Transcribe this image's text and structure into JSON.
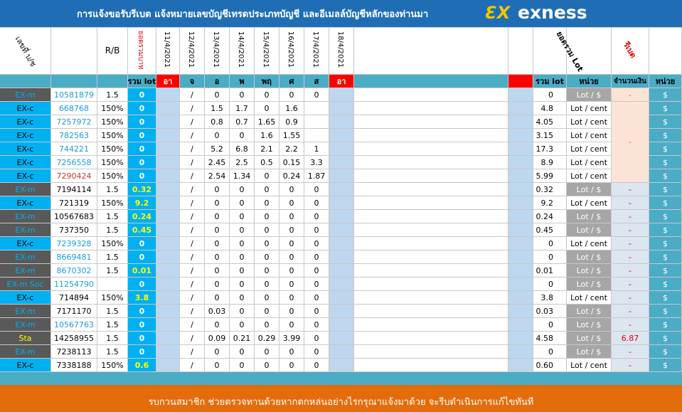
{
  "header": {
    "title": "การแจ้งขอรับรีเบต  แจ้งหมายเลขบัญชีเทรดประเภทบัญชี และอีเมลล์บัญชีหลักของท่านมา",
    "logo": "exness"
  },
  "columns": {
    "account": "เลขที่ บ/ช",
    "rb": "R/B",
    "total": "ยอดรวมบาท",
    "dates": [
      "11/4/2021",
      "12/4/2021",
      "13/4/2021",
      "14/4/2021",
      "15/4/2021",
      "16/4/2021",
      "17/4/2021",
      "18/4/2021"
    ],
    "sum": "ยอดรวม Lot",
    "rebate": "รีเบต"
  },
  "subheader": {
    "total": "รวม lot",
    "days": [
      "อา",
      "จ",
      "อ",
      "พ",
      "พฤ",
      "ศ",
      "ส",
      "อา"
    ],
    "sum": "รวม lot",
    "unit": "หน่วย",
    "amount": "จำนวนเงิน",
    "currency": "หน่วย"
  },
  "table": {
    "rows": [
      [
        "EX-m",
        "10581879",
        "1.5",
        "0",
        "/",
        "0",
        "0",
        "0",
        "0",
        "0",
        "0",
        "Lot / $",
        "-",
        "$"
      ],
      [
        "EX-c",
        "668768",
        "150%",
        "0",
        "/",
        "1.5",
        "1.7",
        "0",
        "1.6",
        null,
        "4.8",
        "Lot / cent",
        null,
        "$"
      ],
      [
        "EX-c",
        "7257972",
        "150%",
        "0",
        "/",
        "0.8",
        "0.7",
        "1.65",
        "0.9",
        null,
        "4.05",
        "Lot / cent",
        null,
        "$"
      ],
      [
        "EX-c",
        "782563",
        "150%",
        "0",
        "/",
        "0",
        "0",
        "1.6",
        "1.55",
        null,
        "3.15",
        "Lot / cent",
        null,
        "$"
      ],
      [
        "EX-c",
        "744221",
        "150%",
        "0",
        "/",
        "5.2",
        "6.8",
        "2.1",
        "2.2",
        "1",
        "17.3",
        "Lot / cent",
        null,
        "$"
      ],
      [
        "EX-c",
        "7256558",
        "150%",
        "0",
        "/",
        "2.45",
        "2.5",
        "0.5",
        "0.15",
        "3.3",
        "8.9",
        "Lot / cent",
        null,
        "$"
      ],
      [
        "EX-c",
        "7290424",
        "150%",
        "0",
        "/",
        "2.54",
        "1.34",
        "0",
        "0.24",
        "1.87",
        "5.99",
        "Lot / cent",
        null,
        "$"
      ],
      [
        "EX-m",
        "7194114",
        "1.5",
        "0.32",
        "/",
        "0",
        "0",
        "0",
        "0",
        "0",
        "0.32",
        "Lot / $",
        "-",
        "$"
      ],
      [
        "EX-c",
        "721319",
        "150%",
        "9.2",
        "/",
        "0",
        "0",
        "0",
        "0",
        "0",
        "9.2",
        "Lot / cent",
        "-",
        "$"
      ],
      [
        "EX-m",
        "10567683",
        "1.5",
        "0.24",
        "/",
        "0",
        "0",
        "0",
        "0",
        "0",
        "0.24",
        "Lot / $",
        "-",
        "$"
      ],
      [
        "EX-m",
        "737350",
        "1.5",
        "0.45",
        "/",
        "0",
        "0",
        "0",
        "0",
        "0",
        "0.45",
        "Lot / $",
        "-",
        "$"
      ],
      [
        "EX-c",
        "7239328",
        "150%",
        "0",
        "/",
        "0",
        "0",
        "0",
        "0",
        "0",
        "0",
        "Lot / cent",
        "-",
        "$"
      ],
      [
        "EX-m",
        "8669481",
        "1.5",
        "0",
        "/",
        "0",
        "0",
        "0",
        "0",
        "0",
        "0",
        "Lot / $",
        "-",
        "$"
      ],
      [
        "EX-m",
        "8670302",
        "1.5",
        "0.01",
        "/",
        "0",
        "0",
        "0",
        "0",
        "0",
        "0.01",
        "Lot / $",
        "-",
        "$"
      ],
      [
        "EX-m Soc",
        "11254790",
        null,
        "0",
        "/",
        "0",
        "0",
        "0",
        "0",
        "0",
        "0",
        "Lot / $",
        "-",
        "$"
      ],
      [
        "EX-c",
        "714894",
        "150%",
        "3.8",
        "/",
        "0",
        "0",
        "0",
        "0",
        "0",
        "3.8",
        "Lot / cent",
        "-",
        "$"
      ],
      [
        "EX-m",
        "7171170",
        "1.5",
        "0",
        "/",
        "0.03",
        "0",
        "0",
        "0",
        "0",
        "0.03",
        "Lot / $",
        "-",
        "$"
      ],
      [
        "EX-m",
        "10567763",
        "1.5",
        "0",
        "/",
        "0",
        "0",
        "0",
        "0",
        "0",
        "0",
        "Lot / $",
        "-",
        "$"
      ],
      [
        "Sta",
        "14258955",
        "1.5",
        "0",
        "/",
        "0.09",
        "0.21",
        "0.29",
        "3.99",
        "0",
        "4.58",
        "Lot / $",
        "6.87",
        "$"
      ],
      [
        "EX-m",
        "7238113",
        "1.5",
        "0",
        "/",
        "0",
        "0",
        "0",
        "0",
        "0",
        "0",
        "Lot / $",
        "-",
        "$"
      ],
      [
        "EX-c",
        "7338188",
        "150%",
        "0.6",
        "/",
        "0",
        "0",
        "0",
        "0",
        "0",
        "0.60",
        "Lot / cent",
        "-",
        "$"
      ]
    ],
    "merged_amount": "-"
  },
  "footer": "รบกวนสมาชิก ช่วยตรวจทานด้วยหากตกหล่นอย่างไรกรุณาแจ้งมาด้วย จะรีบดำเนินการแก้ไขทันที"
}
